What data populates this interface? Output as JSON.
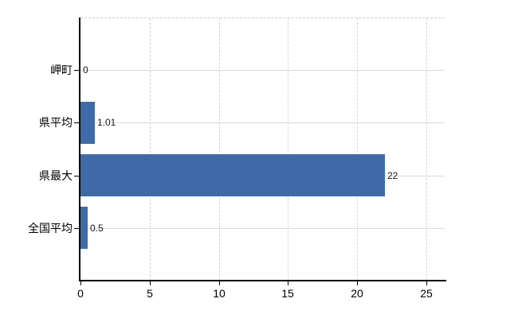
{
  "chart_data": {
    "type": "bar",
    "orientation": "horizontal",
    "title": "",
    "xlabel": "",
    "ylabel": "",
    "categories": [
      "岬町",
      "県平均",
      "県最大",
      "全国平均"
    ],
    "values": [
      0,
      1.01,
      22,
      0.5
    ],
    "value_labels": [
      "0",
      "1.01",
      "22",
      "0.5"
    ],
    "x_ticks": [
      0,
      5,
      10,
      15,
      20,
      25
    ],
    "x_tick_labels": [
      "0",
      "5",
      "10",
      "15",
      "20",
      "25"
    ],
    "xlim": [
      0,
      26.4
    ],
    "grid": true,
    "legend": "none",
    "bar_color": "#3e6ba8",
    "axis_color": "#000000",
    "gridline_color": "#d7ddd7",
    "border_dash_color": "#cfcfcf",
    "background_color": "#ffffff"
  }
}
